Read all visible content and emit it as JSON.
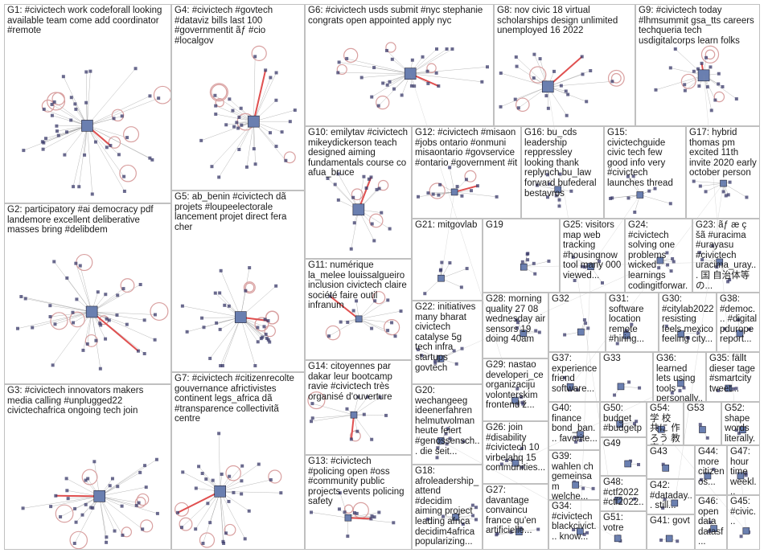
{
  "groups": [
    {
      "id": "G1",
      "label": "G1: #civictech work codeforall looking available team come add coordinator #remote"
    },
    {
      "id": "G2",
      "label": "G2: participatory #ai democracy pdf landemore excellent deliberative masses bring #delibdem"
    },
    {
      "id": "G3",
      "label": "G3: #civictech innovators makers media calling #unplugged22 civictechafrica ongoing tech join"
    },
    {
      "id": "G4",
      "label": "G4: #civictech #govtech #dataviz bills last 100 #governmentit ãƒ #cio #localgov"
    },
    {
      "id": "G5",
      "label": "G5: ab_benin #civictech dã projets #loupeelectorale lancement projet direct fera cher"
    },
    {
      "id": "G6",
      "label": "G6: #civictech usds submit #nyc stephanie congrats open appointed apply nyc"
    },
    {
      "id": "G7",
      "label": "G7: #civictech #citizenrecolte gouvernance africtivistes continent legs_africa dã #transparence collectivitã centre"
    },
    {
      "id": "G8",
      "label": "G8: nov civic 18 virtual scholarships design unlimited unemployed 16 2022"
    },
    {
      "id": "G9",
      "label": "G9: #civictech today #lhmsummit gsa_tts careers techqueria tech usdigitalcorps learn folks"
    },
    {
      "id": "G10",
      "label": "G10: emilytav #civictech mikeydickerson teach designed aiming fundamentals course co afua_bruce"
    },
    {
      "id": "G11",
      "label": "G11: numérique la_melee louissalgueiro inclusion civictech claire société faire outil infranum"
    },
    {
      "id": "G12",
      "label": "G12: #civictech #misaon #jobs ontario #onmuni misaontario #govservice #ontario #government #it"
    },
    {
      "id": "G13",
      "label": "G13: #civictech #policing open #oss #community public projects events policing safety"
    },
    {
      "id": "G14",
      "label": "G14: citoyennes par dakar leur bootcamp ravie #civictech très organisé d'ouverture"
    },
    {
      "id": "G15",
      "label": "G15: civictechguide civic tech few good info very #civictech launches thread"
    },
    {
      "id": "G16",
      "label": "G16: bu_cds leadership reppressley looking thank replynch bu_law forward bufederal bestavros"
    },
    {
      "id": "G17",
      "label": "G17: hybrid thomas pm excited 11th invite 2020 early october person"
    },
    {
      "id": "G18",
      "label": "G18: afroleadership_ attend #decidim aiming project leading africa decidim4africa popularizing..."
    },
    {
      "id": "G19",
      "label": "G19"
    },
    {
      "id": "G20",
      "label": "G20: wechangeeg ideenerfahren helmutwolman heute feiert #genossensch... die seit..."
    },
    {
      "id": "G21",
      "label": "G21: mitgovlab"
    },
    {
      "id": "G22",
      "label": "G22: initiatives many bharat civictech catalyse 5g tech infra startups govtech"
    },
    {
      "id": "G23",
      "label": "G23: ãƒ æ ç šã #uracima #urayasu #civictech uracima_uray... 国 自治体等の..."
    },
    {
      "id": "G24",
      "label": "G24: #civictech solving one problems wicked learnings codingitforwar..."
    },
    {
      "id": "G25",
      "label": "G25: visitors map web tracking #housingnow tool many 000 viewed..."
    },
    {
      "id": "G26",
      "label": "G26: join #disability #civictech 10 virbelahq 15 communities..."
    },
    {
      "id": "G27",
      "label": "G27: davantage convaincu france qu'en artificielle..."
    },
    {
      "id": "G28",
      "label": "G28: morning quality 27 08 wednesday air sensors 19 doing 40am"
    },
    {
      "id": "G29",
      "label": "G29: nastao developeri_ce organizaciju volonterskim frontend ž..."
    },
    {
      "id": "G30",
      "label": "G30: #citylab2022 resisting feels mexico feeling city..."
    },
    {
      "id": "G31",
      "label": "G31: software location remote #hiring..."
    },
    {
      "id": "G32",
      "label": "G32"
    },
    {
      "id": "G33",
      "label": "G33"
    },
    {
      "id": "G34",
      "label": "G34: #civictech blackcivict... know..."
    },
    {
      "id": "G35",
      "label": "G35: fällt dieser tage #smartcity tweet..."
    },
    {
      "id": "G36",
      "label": "G36: learned lets using tools personally..."
    },
    {
      "id": "G37",
      "label": "G37: experience friend software..."
    },
    {
      "id": "G38",
      "label": "G38: #democ... #digital pdurope report..."
    },
    {
      "id": "G39",
      "label": "G39: wahlen ch gemeinsam welche..."
    },
    {
      "id": "G40",
      "label": "G40: finance bond_ban... favorite..."
    },
    {
      "id": "G41",
      "label": "G41: govt"
    },
    {
      "id": "G42",
      "label": "G42: #dataday... still..."
    },
    {
      "id": "G43",
      "label": "G43"
    },
    {
      "id": "G44",
      "label": "G44: more citizen os..."
    },
    {
      "id": "G45",
      "label": "G45: #civic..."
    },
    {
      "id": "G46",
      "label": "G46: open data datasf..."
    },
    {
      "id": "G47",
      "label": "G47: hour time weekl..."
    },
    {
      "id": "G48",
      "label": "G48: #ctf2022 #ctf2022..."
    },
    {
      "id": "G49",
      "label": "G49"
    },
    {
      "id": "G50",
      "label": "G50: budget #budgetp..."
    },
    {
      "id": "G51",
      "label": "G51: votre"
    },
    {
      "id": "G52",
      "label": "G52: shape words literally..."
    },
    {
      "id": "G53",
      "label": "G53"
    },
    {
      "id": "G54",
      "label": "G54: 学 校 共に 作ろう 教 育をテ..."
    }
  ],
  "colors": {
    "border": "#c0c0c0",
    "edge": "#9a9a9a",
    "self_loop": "#d9a0a0",
    "strong_edge": "#e05050",
    "node": "#3a3a6a",
    "label_text": "#1a1a1a"
  },
  "icons": [
    "network-node-icon",
    "profile-avatar-icon"
  ]
}
